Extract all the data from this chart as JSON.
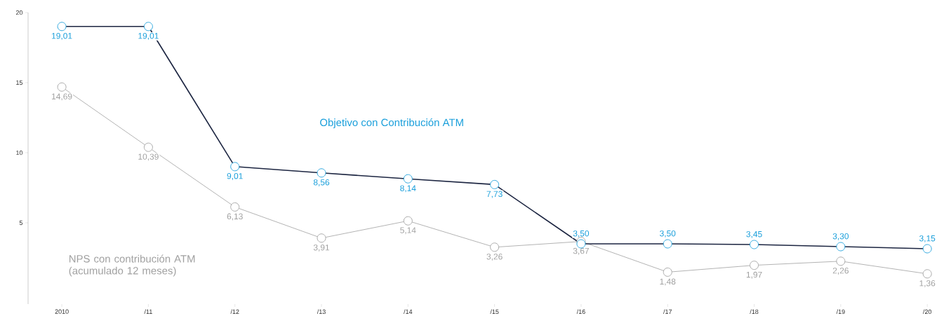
{
  "chart_data": {
    "type": "line",
    "categories": [
      "2010",
      "/11",
      "/12",
      "/13",
      "/14",
      "/15",
      "/16",
      "/17",
      "/18",
      "/19",
      "/20"
    ],
    "series": [
      {
        "name": "Objetivo con Contribución ATM",
        "color": "#1c2541",
        "values": [
          19.01,
          19.01,
          9.01,
          8.56,
          8.14,
          7.73,
          3.5,
          3.5,
          3.45,
          3.3,
          3.15
        ],
        "value_labels": [
          "19,01",
          "19,01",
          "9,01",
          "8,56",
          "8,14",
          "7,73",
          "3,50",
          "3,50",
          "3,45",
          "3,30",
          "3,15"
        ]
      },
      {
        "name": "NPS con contribución ATM (acumulado 12 meses)",
        "color": "#a0a0a0",
        "values": [
          14.69,
          10.39,
          6.13,
          3.91,
          5.14,
          3.26,
          3.67,
          1.48,
          1.97,
          2.26,
          1.36
        ],
        "value_labels": [
          "14,69",
          "10,39",
          "6,13",
          "3,91",
          "5,14",
          "3,26",
          "3,67",
          "1,48",
          "1,97",
          "2,26",
          "1,36"
        ]
      }
    ],
    "ylim": [
      -0.8,
      20
    ],
    "yticks": [
      5,
      10,
      15,
      20
    ],
    "marker": "circle",
    "grid": false
  }
}
